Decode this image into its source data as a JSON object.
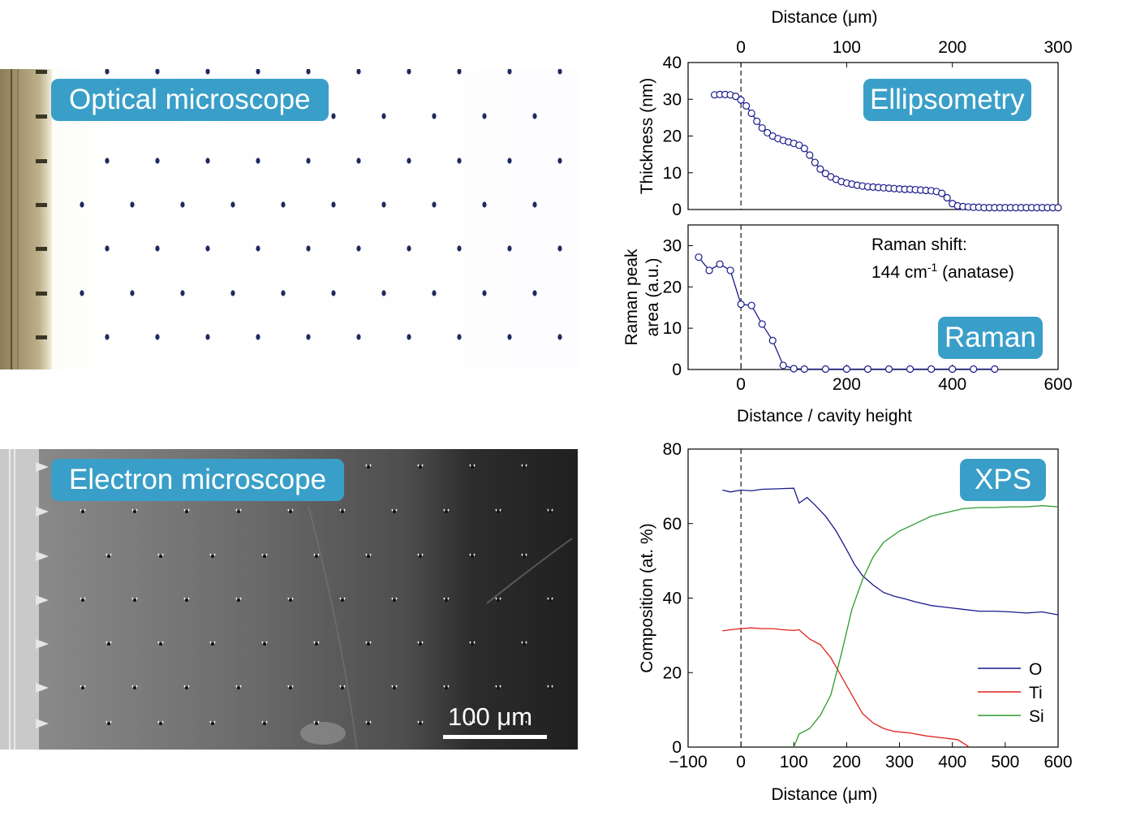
{
  "images": {
    "optical_label": "Optical microscope",
    "electron_label": "Electron microscope",
    "scale_bar_label": "100 μm"
  },
  "chart_data": [
    {
      "type": "scatter",
      "badge": "Ellipsometry",
      "title": "",
      "xlabel": "Distance (μm)",
      "xlabel_position": "top",
      "ylabel": "Thickness (nm)",
      "xlim": [
        -50,
        300
      ],
      "ylim": [
        0,
        40
      ],
      "xticks": [
        0,
        100,
        200,
        300
      ],
      "yticks": [
        0,
        10,
        20,
        30,
        40
      ],
      "marker": "open-circle",
      "color": "#1a1a8c",
      "dashed_vline_x": 0,
      "series": [
        {
          "x": [
            -25,
            -20,
            -15,
            -10,
            -5,
            0,
            5,
            10,
            15,
            20,
            25,
            30,
            35,
            40,
            45,
            50,
            55,
            60,
            65,
            70,
            75,
            80,
            85,
            90,
            95,
            100,
            105,
            110,
            115,
            120,
            125,
            130,
            135,
            140,
            145,
            150,
            155,
            160,
            165,
            170,
            175,
            180,
            185,
            190,
            195,
            200,
            205,
            210,
            215,
            220,
            225,
            230,
            235,
            240,
            245,
            250,
            255,
            260,
            265,
            270,
            275,
            280,
            285,
            290,
            295,
            300
          ],
          "y": [
            31.2,
            31.3,
            31.3,
            31.2,
            30.8,
            29.8,
            28.2,
            26.2,
            24.0,
            22.2,
            20.9,
            20.0,
            19.3,
            18.8,
            18.4,
            18.0,
            17.5,
            16.6,
            14.8,
            12.8,
            11.0,
            9.8,
            8.9,
            8.2,
            7.6,
            7.2,
            6.9,
            6.6,
            6.4,
            6.2,
            6.1,
            6.0,
            5.9,
            5.8,
            5.7,
            5.6,
            5.5,
            5.5,
            5.4,
            5.3,
            5.2,
            5.1,
            4.9,
            4.4,
            3.2,
            1.6,
            1.0,
            0.8,
            0.7,
            0.6,
            0.6,
            0.5,
            0.5,
            0.5,
            0.5,
            0.5,
            0.5,
            0.5,
            0.5,
            0.5,
            0.5,
            0.5,
            0.5,
            0.5,
            0.5,
            0.5
          ]
        }
      ]
    },
    {
      "type": "line",
      "badge": "Raman",
      "title": "",
      "xlabel": "Distance / cavity height",
      "ylabel": "Raman peak area (a.u.)",
      "ylabel_lines": [
        "Raman peak",
        "area (a.u.)"
      ],
      "annotation": {
        "line1": "Raman shift:",
        "line2_prefix": "144 cm",
        "line2_sup": "-1",
        "line2_suffix": " (anatase)"
      },
      "xlim": [
        -100,
        600
      ],
      "ylim": [
        0,
        35
      ],
      "xticks": [
        0,
        200,
        400,
        600
      ],
      "yticks": [
        0,
        10,
        20,
        30
      ],
      "marker": "open-circle",
      "color": "#1a1a8c",
      "dashed_vline_x": 0,
      "series": [
        {
          "x": [
            -80,
            -60,
            -40,
            -20,
            0,
            20,
            40,
            60,
            80,
            100,
            120,
            160,
            200,
            240,
            280,
            320,
            360,
            400,
            440,
            480
          ],
          "y": [
            27.2,
            24.0,
            25.5,
            24.0,
            15.8,
            15.5,
            11.0,
            7.0,
            1.0,
            0.2,
            0.1,
            0.1,
            0.1,
            0.1,
            0.1,
            0.1,
            0.1,
            0.1,
            0.1,
            0.1
          ]
        }
      ]
    },
    {
      "type": "line",
      "badge": "XPS",
      "title": "",
      "xlabel": "Distance (μm)",
      "ylabel": "Composition (at. %)",
      "xlim": [
        -100,
        600
      ],
      "ylim": [
        0,
        80
      ],
      "xticks": [
        -100,
        0,
        100,
        200,
        300,
        400,
        500,
        600
      ],
      "xtick_labels": [
        "−100",
        "0",
        "100",
        "200",
        "300",
        "400",
        "500",
        "600"
      ],
      "yticks": [
        0,
        20,
        40,
        60,
        80
      ],
      "dashed_vline_x": 0,
      "legend": "bottom-right",
      "series": [
        {
          "name": "O",
          "color": "#1a1a8c",
          "x": [
            -35,
            -20,
            0,
            20,
            40,
            60,
            80,
            100,
            110,
            125,
            140,
            160,
            180,
            200,
            215,
            230,
            250,
            270,
            290,
            310,
            330,
            360,
            390,
            420,
            450,
            480,
            510,
            540,
            570,
            600
          ],
          "y": [
            69.0,
            68.5,
            69.0,
            68.8,
            69.2,
            69.3,
            69.4,
            69.5,
            65.5,
            67.0,
            65.0,
            62.0,
            58.0,
            53.0,
            49.0,
            46.0,
            43.5,
            41.5,
            40.5,
            39.8,
            39.0,
            38.0,
            37.5,
            37.0,
            36.5,
            36.5,
            36.3,
            36.0,
            36.3,
            35.5
          ]
        },
        {
          "name": "Ti",
          "color": "#e0211b",
          "x": [
            -35,
            -20,
            0,
            20,
            40,
            60,
            80,
            100,
            110,
            130,
            150,
            170,
            190,
            210,
            230,
            250,
            270,
            290,
            320,
            350,
            380,
            410,
            430
          ],
          "y": [
            31.2,
            31.5,
            31.8,
            32.0,
            31.8,
            31.8,
            31.5,
            31.3,
            31.5,
            29.0,
            27.5,
            24.0,
            19.0,
            14.0,
            9.0,
            6.5,
            5.0,
            4.2,
            3.8,
            3.0,
            2.5,
            2.0,
            0.2
          ]
        },
        {
          "name": "Si",
          "color": "#2c9b2c",
          "x": [
            100,
            110,
            130,
            150,
            170,
            190,
            210,
            230,
            250,
            270,
            300,
            330,
            360,
            390,
            420,
            450,
            480,
            510,
            540,
            570,
            600
          ],
          "y": [
            0.0,
            3.5,
            5.0,
            8.5,
            14.0,
            25.0,
            37.0,
            45.0,
            51.0,
            55.0,
            58.0,
            60.0,
            62.0,
            63.0,
            64.0,
            64.3,
            64.3,
            64.5,
            64.5,
            64.8,
            64.5
          ]
        }
      ]
    }
  ]
}
